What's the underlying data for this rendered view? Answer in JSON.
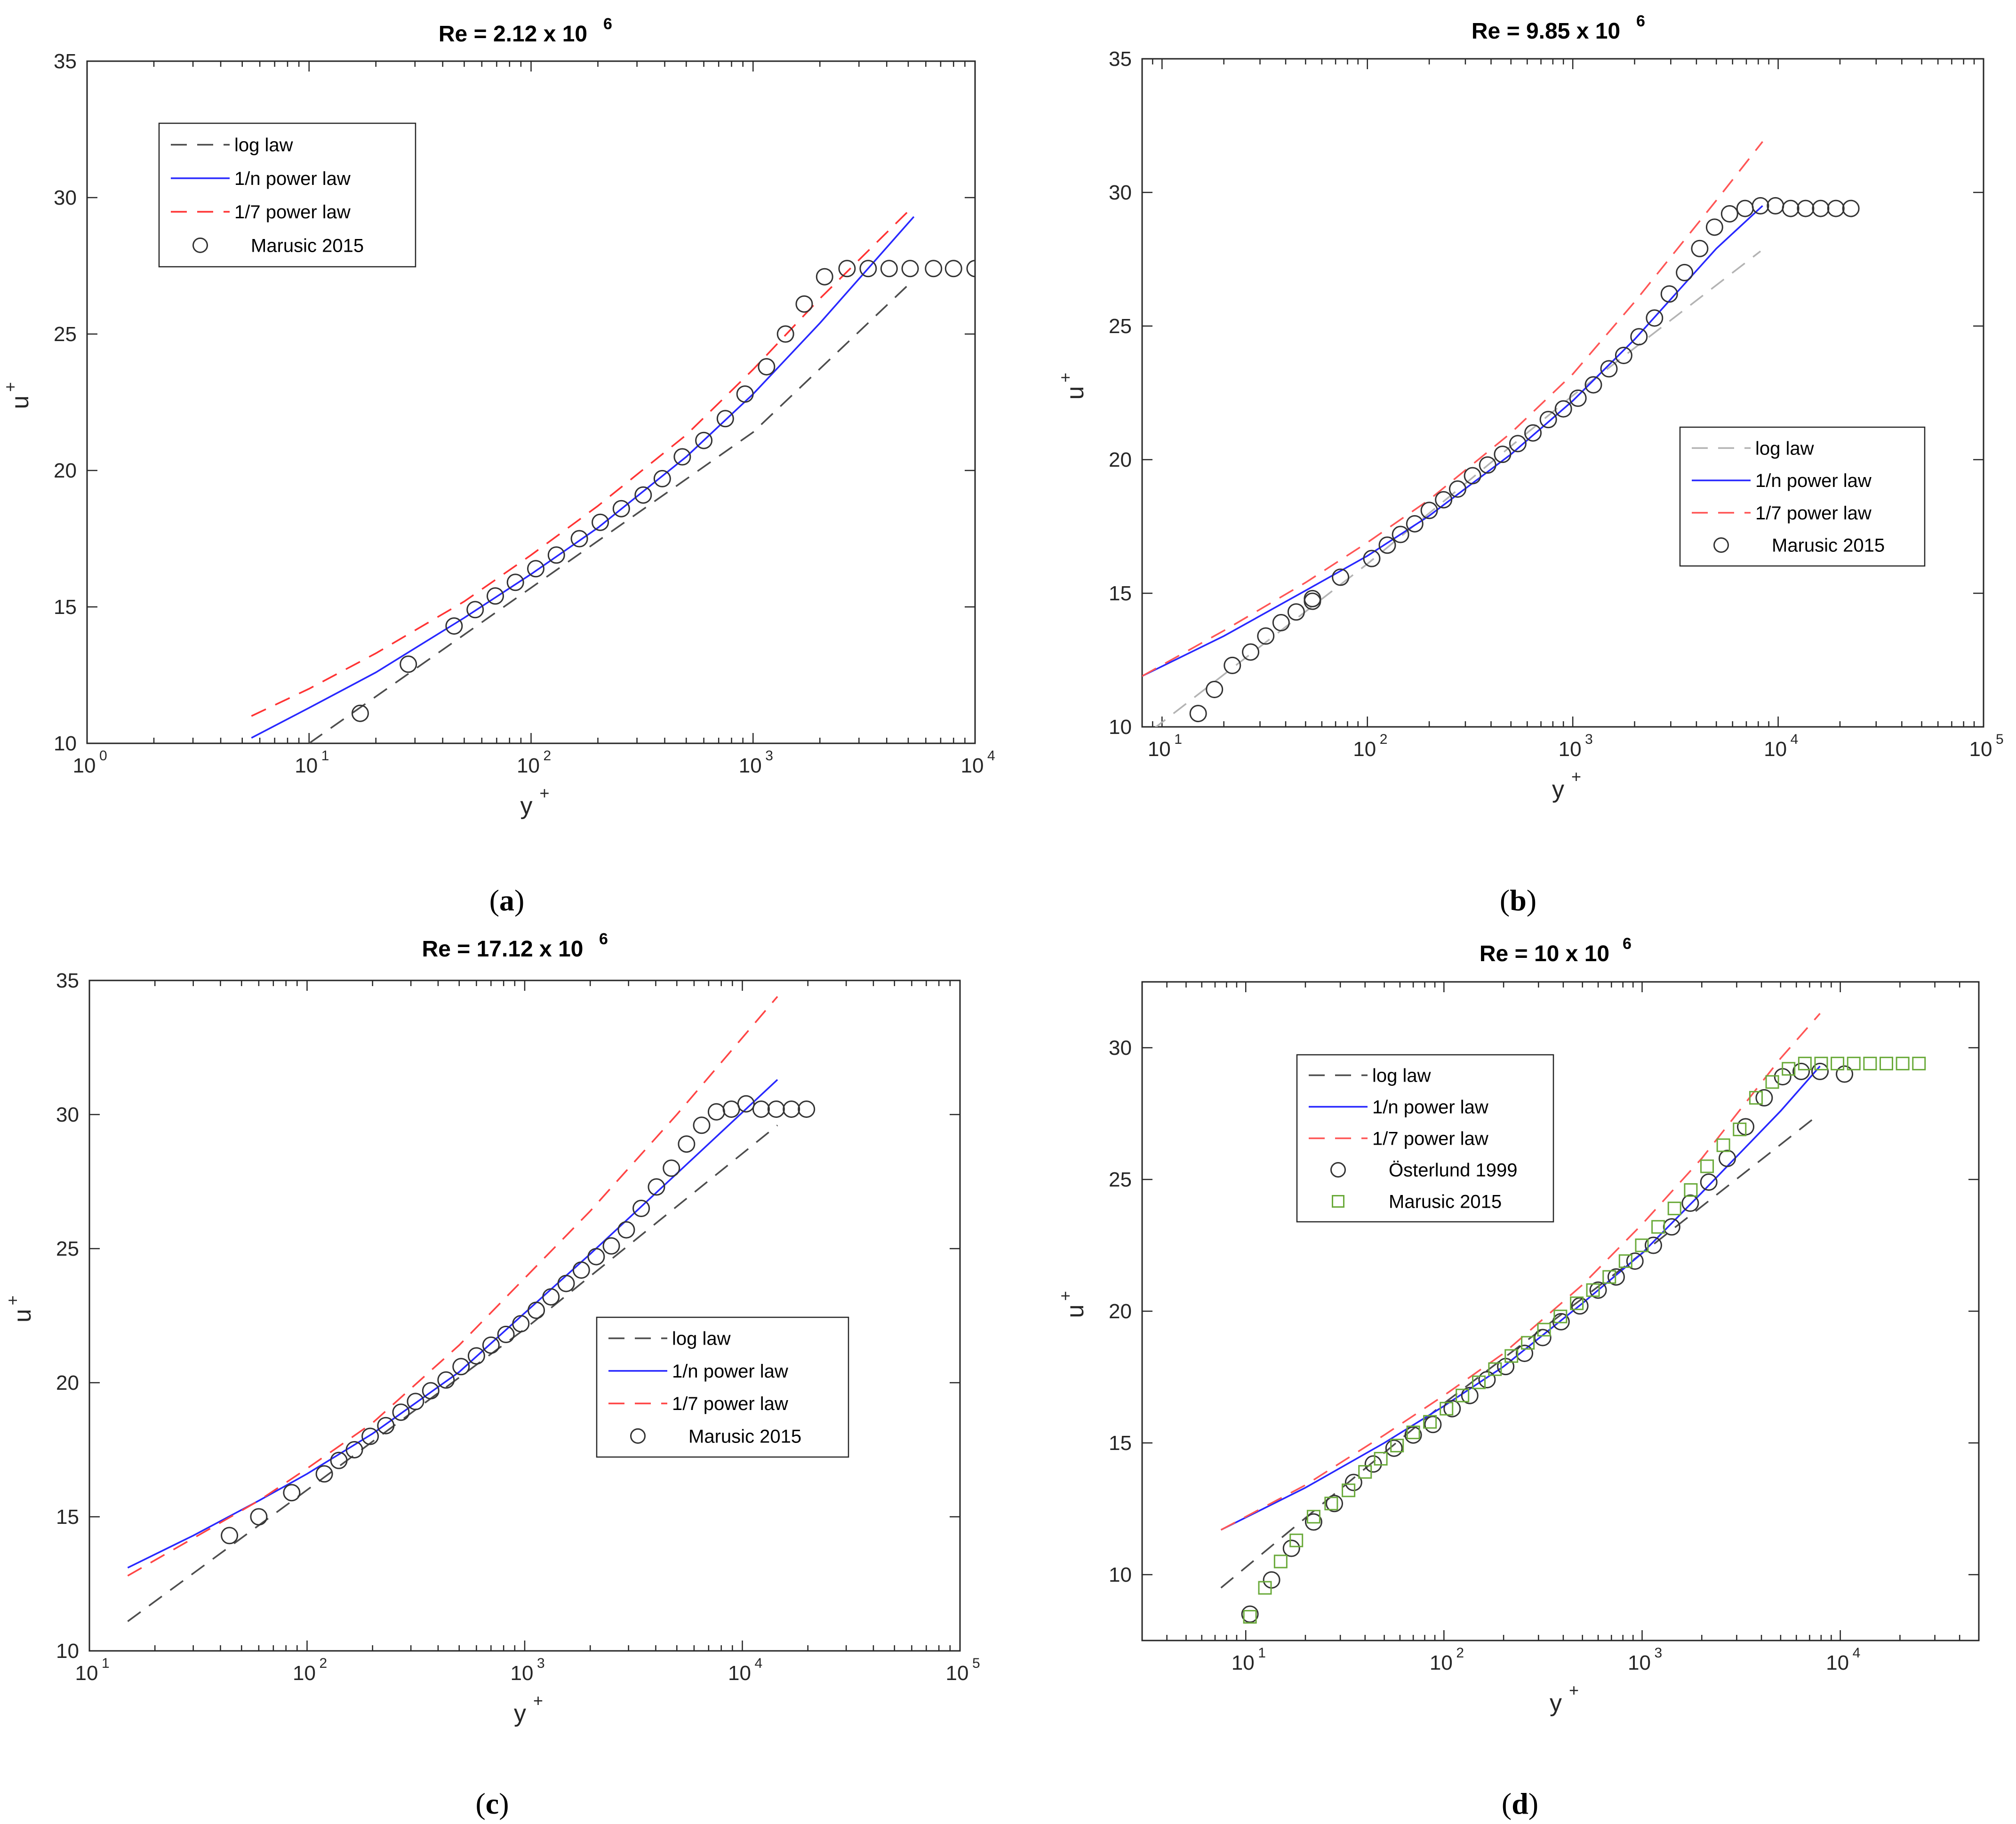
{
  "figure": {
    "captions": [
      "(a)",
      "(b)",
      "(c)",
      "(d)"
    ],
    "caption_letters": [
      "a",
      "b",
      "c",
      "d"
    ]
  },
  "chart_data": [
    {
      "type": "scatter",
      "panel": "a",
      "title": "Re = 2.12 x 10",
      "title_exponent": "6",
      "xlabel": "y",
      "xlabel_sup": "+",
      "ylabel": "u",
      "ylabel_sup": "+",
      "xscale": "log",
      "xlim": [
        1,
        10000
      ],
      "ylim": [
        10,
        35
      ],
      "xticks": [
        1,
        10,
        100,
        1000,
        10000
      ],
      "xtick_labels": [
        "10",
        "10",
        "10",
        "10",
        "10"
      ],
      "xtick_exponents": [
        "0",
        "1",
        "2",
        "3",
        "4"
      ],
      "yticks": [
        10,
        15,
        20,
        25,
        30,
        35
      ],
      "ytick_labels": [
        "10",
        "15",
        "20",
        "25",
        "30",
        "35"
      ],
      "legend_position": "top-left",
      "legend": [
        "log law",
        "1/n power law",
        "1/7 power law",
        "Marusic 2015"
      ],
      "series": [
        {
          "name": "log law",
          "style": "dashed",
          "color": "#4d4d4d",
          "x": [
            10,
            100,
            1000,
            5000
          ],
          "y": [
            10.0,
            15.7,
            21.4,
            26.8
          ]
        },
        {
          "name": "1/n power law",
          "style": "solid",
          "color": "#2828ff",
          "x": [
            5.5,
            10,
            20,
            50,
            100,
            200,
            500,
            1000,
            2000,
            5300
          ],
          "y": [
            10.2,
            11.3,
            12.6,
            14.6,
            16.2,
            17.9,
            20.5,
            22.8,
            25.4,
            29.3
          ]
        },
        {
          "name": "1/7 power law",
          "style": "dashed",
          "color": "#ff3333",
          "x": [
            5.5,
            10,
            20,
            50,
            100,
            200,
            500,
            1000,
            2000,
            5000
          ],
          "y": [
            11.0,
            12.0,
            13.3,
            15.2,
            16.9,
            18.7,
            21.3,
            23.7,
            26.3,
            29.5
          ]
        },
        {
          "name": "Marusic 2015",
          "style": "circle",
          "color": "#333333",
          "x": [
            17,
            28,
            45,
            56,
            69,
            85,
            105,
            130,
            165,
            205,
            255,
            320,
            390,
            480,
            600,
            750,
            920,
            1150,
            1400,
            1700,
            2100,
            2650,
            3300,
            4100,
            5100,
            6500,
            8000,
            10000
          ],
          "y": [
            11.1,
            12.9,
            14.3,
            14.9,
            15.4,
            15.9,
            16.4,
            16.9,
            17.5,
            18.1,
            18.6,
            19.1,
            19.7,
            20.5,
            21.1,
            21.9,
            22.8,
            23.8,
            25.0,
            26.1,
            27.1,
            27.4,
            27.4,
            27.4,
            27.4,
            27.4,
            27.4,
            27.4
          ]
        }
      ]
    },
    {
      "type": "scatter",
      "panel": "b",
      "title": "Re = 9.85 x 10",
      "title_exponent": "6",
      "xlabel": "y",
      "xlabel_sup": "+",
      "ylabel": "u",
      "ylabel_sup": "+",
      "xscale": "log",
      "xlim": [
        8,
        100000
      ],
      "ylim": [
        10,
        35
      ],
      "xticks": [
        10,
        100,
        1000,
        10000,
        100000
      ],
      "xtick_labels": [
        "10",
        "10",
        "10",
        "10",
        "10"
      ],
      "xtick_exponents": [
        "1",
        "2",
        "3",
        "4",
        "5"
      ],
      "yticks": [
        10,
        15,
        20,
        25,
        30,
        35
      ],
      "ytick_labels": [
        "10",
        "15",
        "20",
        "25",
        "30",
        "35"
      ],
      "legend_position": "middle-right",
      "legend": [
        "log law",
        "1/n power law",
        "1/7 power law",
        "Marusic 2015"
      ],
      "series": [
        {
          "name": "log law",
          "style": "dashed",
          "color": "#b3b3b3",
          "x": [
            9,
            100,
            1000,
            8200
          ],
          "y": [
            9.9,
            16.1,
            22.4,
            27.8
          ]
        },
        {
          "name": "1/n power law",
          "style": "solid",
          "color": "#2828ff",
          "x": [
            8,
            20,
            50,
            100,
            200,
            500,
            1000,
            2000,
            5000,
            8400
          ],
          "y": [
            11.9,
            13.4,
            15.1,
            16.4,
            17.9,
            20.2,
            22.2,
            24.5,
            27.9,
            29.5
          ]
        },
        {
          "name": "1/7 power law",
          "style": "dashed",
          "color": "#ff5555",
          "x": [
            8,
            20,
            50,
            100,
            200,
            500,
            1000,
            2000,
            5000,
            8400
          ],
          "y": [
            11.9,
            13.6,
            15.4,
            16.9,
            18.5,
            21.0,
            23.2,
            25.9,
            29.7,
            31.9
          ]
        },
        {
          "name": "Marusic 2015",
          "style": "circle",
          "color": "#333333",
          "x": [
            15,
            18,
            22,
            27,
            32,
            38,
            45,
            54,
            54,
            74,
            105,
            125,
            145,
            170,
            200,
            235,
            275,
            325,
            385,
            455,
            540,
            640,
            760,
            900,
            1060,
            1260,
            1500,
            1770,
            2100,
            2500,
            2950,
            3500,
            4150,
            4900,
            5800,
            6900,
            8200,
            9700,
            11500,
            13600,
            16100,
            19100,
            22600
          ],
          "y": [
            10.5,
            11.4,
            12.3,
            12.8,
            13.4,
            13.9,
            14.3,
            14.7,
            14.8,
            15.6,
            16.3,
            16.8,
            17.2,
            17.6,
            18.1,
            18.5,
            18.9,
            19.4,
            19.8,
            20.2,
            20.6,
            21.0,
            21.5,
            21.9,
            22.3,
            22.8,
            23.4,
            23.9,
            24.6,
            25.3,
            26.2,
            27.0,
            27.9,
            28.7,
            29.2,
            29.4,
            29.5,
            29.5,
            29.4,
            29.4,
            29.4,
            29.4,
            29.4
          ]
        }
      ]
    },
    {
      "type": "scatter",
      "panel": "c",
      "title": "Re = 17.12 x 10",
      "title_exponent": "6",
      "xlabel": "y",
      "xlabel_sup": "+",
      "ylabel": "u",
      "ylabel_sup": "+",
      "xscale": "log",
      "xlim": [
        10,
        100000
      ],
      "ylim": [
        10,
        35
      ],
      "xticks": [
        10,
        100,
        1000,
        10000,
        100000
      ],
      "xtick_labels": [
        "10",
        "10",
        "10",
        "10",
        "10"
      ],
      "xtick_exponents": [
        "1",
        "2",
        "3",
        "4",
        "5"
      ],
      "yticks": [
        10,
        15,
        20,
        25,
        30,
        35
      ],
      "ytick_labels": [
        "10",
        "15",
        "20",
        "25",
        "30",
        "35"
      ],
      "legend_position": "middle-right",
      "legend": [
        "log law",
        "1/n power law",
        "1/7 power law",
        "Marusic 2015"
      ],
      "series": [
        {
          "name": "log law",
          "style": "dashed",
          "color": "#4d4d4d",
          "x": [
            15,
            100,
            1000,
            14500
          ],
          "y": [
            11.1,
            16.0,
            22.0,
            29.6
          ]
        },
        {
          "name": "1/n power law",
          "style": "solid",
          "color": "#2828ff",
          "x": [
            15,
            30,
            60,
            100,
            200,
            500,
            1000,
            2000,
            5000,
            14500
          ],
          "y": [
            13.1,
            14.3,
            15.6,
            16.6,
            18.1,
            20.4,
            22.6,
            24.8,
            27.8,
            31.3
          ]
        },
        {
          "name": "1/7 power law",
          "style": "dashed",
          "color": "#ff4444",
          "x": [
            15,
            30,
            60,
            100,
            200,
            500,
            1000,
            2000,
            5000,
            14500
          ],
          "y": [
            12.8,
            14.2,
            15.6,
            16.8,
            18.5,
            21.4,
            23.9,
            26.4,
            30.0,
            34.4
          ]
        },
        {
          "name": "Marusic 2015",
          "style": "circle",
          "color": "#333333",
          "x": [
            44,
            60,
            85,
            120,
            140,
            165,
            195,
            230,
            270,
            315,
            370,
            435,
            510,
            600,
            700,
            820,
            960,
            1130,
            1320,
            1550,
            1820,
            2130,
            2500,
            2930,
            3430,
            4030,
            4720,
            5540,
            6500,
            7600,
            8900,
            10400,
            12200,
            14300,
            16800,
            19700
          ],
          "y": [
            14.3,
            15.0,
            15.9,
            16.6,
            17.1,
            17.5,
            18.0,
            18.4,
            18.9,
            19.3,
            19.7,
            20.1,
            20.6,
            21.0,
            21.4,
            21.8,
            22.2,
            22.7,
            23.2,
            23.7,
            24.2,
            24.7,
            25.1,
            25.7,
            26.5,
            27.3,
            28.0,
            28.9,
            29.6,
            30.1,
            30.2,
            30.4,
            30.2,
            30.2,
            30.2,
            30.2
          ]
        }
      ]
    },
    {
      "type": "scatter",
      "panel": "d",
      "title": "Re = 10 x 10",
      "title_exponent": "6",
      "xlabel": "y",
      "xlabel_sup": "+",
      "ylabel": "u",
      "ylabel_sup": "+",
      "xscale": "log",
      "xlim": [
        3,
        50000
      ],
      "ylim": [
        7.5,
        32.5
      ],
      "xticks": [
        10,
        100,
        1000,
        10000
      ],
      "xtick_labels": [
        "10",
        "10",
        "10",
        "10"
      ],
      "xtick_exponents": [
        "1",
        "2",
        "3",
        "4"
      ],
      "yticks": [
        10,
        15,
        20,
        25,
        30
      ],
      "ytick_labels": [
        "10",
        "15",
        "20",
        "25",
        "30"
      ],
      "legend_position": "top-left",
      "legend": [
        "log law",
        "1/n power law",
        "1/7 power law",
        "Österlund 1999",
        "Marusic 2015"
      ],
      "series": [
        {
          "name": "log law",
          "style": "dashed",
          "color": "#4d4d4d",
          "x": [
            7.5,
            100,
            1000,
            7900
          ],
          "y": [
            9.5,
            16.5,
            22.2,
            27.5
          ]
        },
        {
          "name": "1/n power law",
          "style": "solid",
          "color": "#2828ff",
          "x": [
            7.5,
            20,
            50,
            100,
            200,
            500,
            1000,
            2000,
            5000,
            7900
          ],
          "y": [
            11.7,
            13.3,
            15.0,
            16.4,
            17.9,
            20.3,
            22.2,
            24.5,
            27.6,
            29.3
          ]
        },
        {
          "name": "1/7 power law",
          "style": "dashed",
          "color": "#ff5555",
          "x": [
            7.5,
            20,
            50,
            100,
            200,
            500,
            1000,
            2000,
            5000,
            7900
          ],
          "y": [
            11.7,
            13.4,
            15.3,
            16.8,
            18.4,
            21.0,
            23.3,
            25.8,
            29.6,
            31.3
          ]
        },
        {
          "name": "Österlund 1999",
          "style": "circle",
          "color": "#333333",
          "x": [
            10.5,
            13.5,
            17,
            22,
            28,
            35,
            44,
            56,
            70,
            88,
            110,
            135,
            165,
            205,
            255,
            315,
            390,
            485,
            600,
            740,
            920,
            1140,
            1410,
            1750,
            2170,
            2690,
            3330,
            4130,
            5120,
            6350,
            7900,
            10500
          ],
          "y": [
            8.5,
            9.8,
            11.0,
            12.0,
            12.7,
            13.5,
            14.2,
            14.8,
            15.3,
            15.7,
            16.3,
            16.8,
            17.4,
            17.9,
            18.4,
            19.0,
            19.6,
            20.2,
            20.8,
            21.3,
            21.9,
            22.5,
            23.2,
            24.1,
            24.9,
            25.8,
            27.0,
            28.1,
            28.9,
            29.1,
            29.1,
            29.0
          ]
        },
        {
          "name": "Marusic 2015",
          "style": "square",
          "color": "#6aaa3a",
          "x": [
            10.5,
            12.5,
            15,
            18,
            22,
            27,
            33,
            40,
            48,
            58,
            70,
            85,
            103,
            124,
            150,
            181,
            219,
            265,
            320,
            387,
            468,
            565,
            683,
            825,
            997,
            1205,
            1456,
            1760,
            2127,
            2570,
            3106,
            3754,
            4536,
            5482,
            6625,
            8006,
            9675,
            11692,
            14129,
            17075,
            20634,
            24936
          ],
          "y": [
            8.4,
            9.5,
            10.5,
            11.3,
            12.2,
            12.7,
            13.2,
            13.9,
            14.4,
            14.9,
            15.4,
            15.8,
            16.3,
            16.8,
            17.3,
            17.8,
            18.3,
            18.8,
            19.3,
            19.8,
            20.3,
            20.8,
            21.3,
            21.9,
            22.5,
            23.2,
            23.9,
            24.6,
            25.5,
            26.3,
            26.9,
            28.1,
            28.7,
            29.2,
            29.4,
            29.4,
            29.4,
            29.4,
            29.4,
            29.4,
            29.4,
            29.4
          ]
        }
      ]
    }
  ]
}
